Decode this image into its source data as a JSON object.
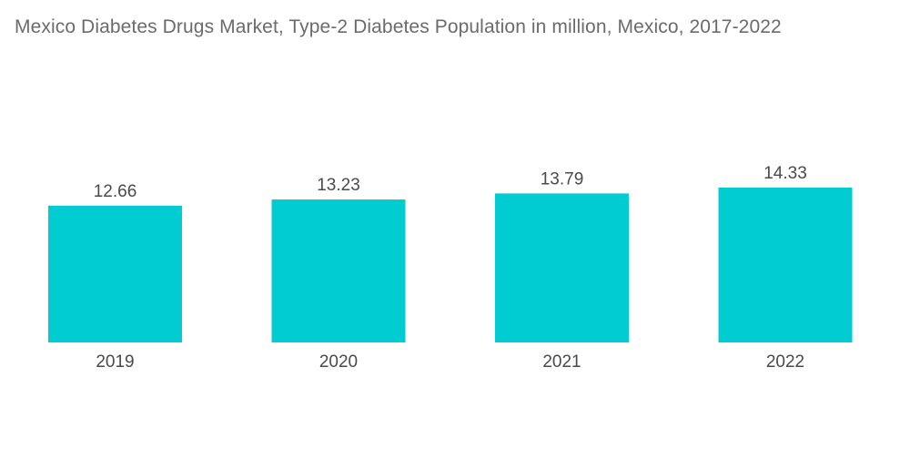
{
  "chart_data": {
    "type": "bar",
    "title": "Mexico Diabetes Drugs Market, Type-2 Diabetes Population in million, Mexico, 2017-2022",
    "categories": [
      "2019",
      "2020",
      "2021",
      "2022"
    ],
    "values": [
      12.66,
      13.23,
      13.79,
      14.33
    ],
    "value_labels": [
      "12.66",
      "13.23",
      "13.79",
      "14.33"
    ],
    "xlabel": "",
    "ylabel": "",
    "ylim": [
      0,
      14.33
    ],
    "grid": false,
    "legend": "none",
    "bar_color": "#00ccd1"
  }
}
